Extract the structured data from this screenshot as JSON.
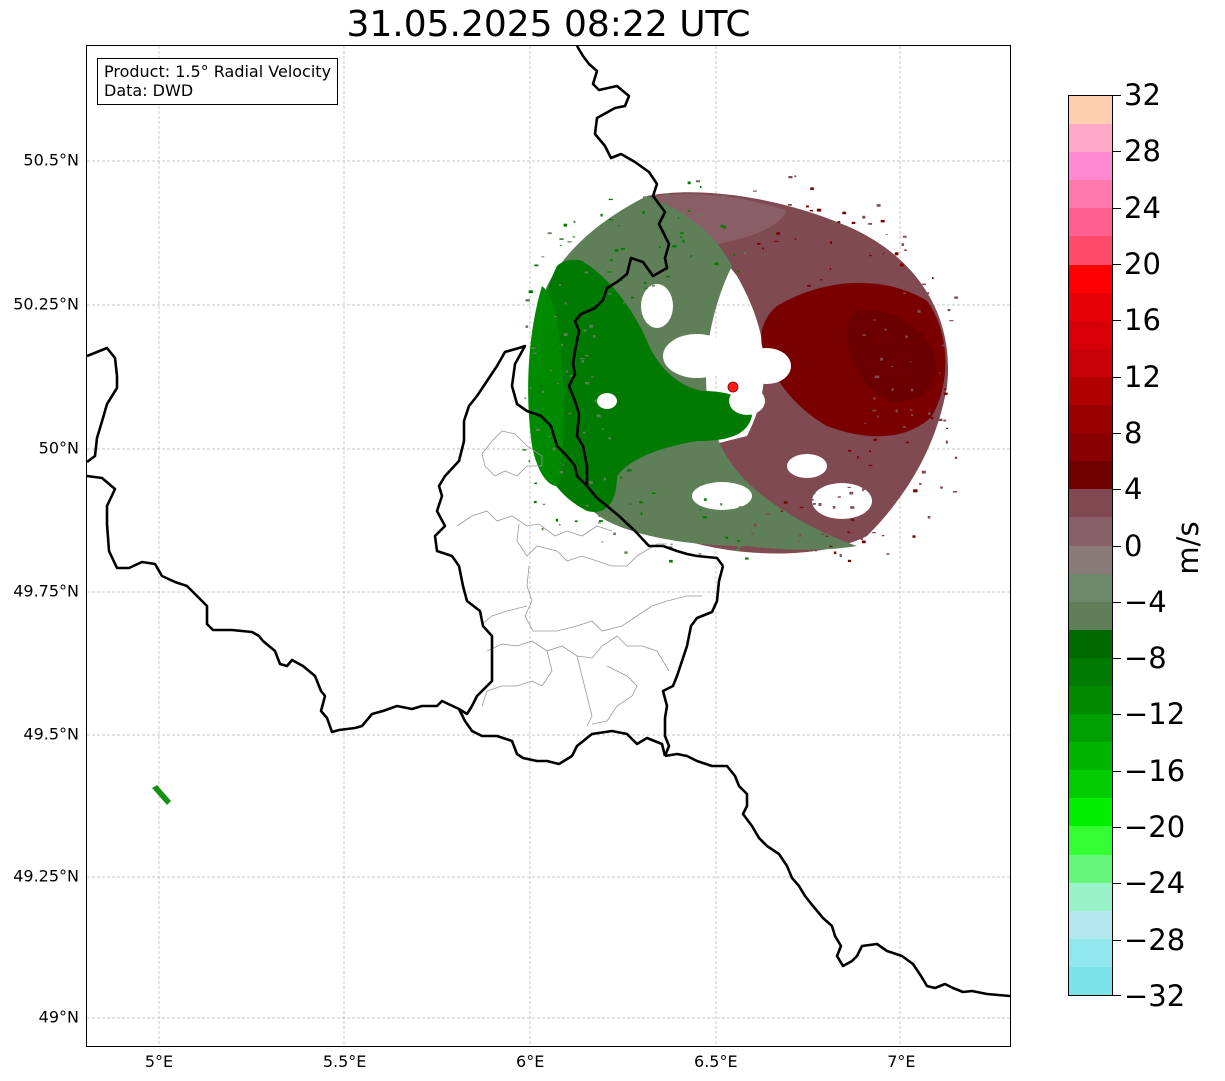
{
  "title": "31.05.2025 08:22 UTC",
  "info_box": {
    "line1": "Product: 1.5° Radial Velocity",
    "line2": "Data: DWD"
  },
  "map": {
    "extent": {
      "lon": [
        4.8,
        7.3
      ],
      "lat": [
        48.95,
        50.7
      ]
    },
    "lon_ticks": [
      {
        "value": 5.0,
        "label": "5°E"
      },
      {
        "value": 5.5,
        "label": "5.5°E"
      },
      {
        "value": 6.0,
        "label": "6°E"
      },
      {
        "value": 6.5,
        "label": "6.5°E"
      },
      {
        "value": 7.0,
        "label": "7°E"
      }
    ],
    "lat_ticks": [
      {
        "value": 50.5,
        "label": "50.5°N"
      },
      {
        "value": 50.25,
        "label": "50.25°N"
      },
      {
        "value": 50.0,
        "label": "50°N"
      },
      {
        "value": 49.75,
        "label": "49.75°N"
      },
      {
        "value": 49.5,
        "label": "49.5°N"
      },
      {
        "value": 49.25,
        "label": "49.25°N"
      },
      {
        "value": 49.0,
        "label": "49°N"
      }
    ],
    "radar_site": {
      "lon": 6.548,
      "lat": 50.11,
      "color": "#ff1a1a"
    },
    "colors": {
      "border": "#000000",
      "admin": "#999999",
      "grid": "#b5b5b5",
      "inbound_strong": "#007a00",
      "inbound_weak": "#5e7f57",
      "outbound_strong": "#7a0000",
      "outbound_weak": "#7f4a52",
      "clutter": "#129112"
    }
  },
  "colorbar": {
    "unit": "m/s",
    "vmin": -32,
    "vmax": 32,
    "tick_labels": [
      "32",
      "28",
      "24",
      "20",
      "16",
      "12",
      "8",
      "4",
      "0",
      "−4",
      "−8",
      "−12",
      "−16",
      "−20",
      "−24",
      "−28",
      "−32"
    ],
    "colors_top_to_bottom": [
      "#ffcfb0",
      "#ffa8c8",
      "#ff88d0",
      "#ff78aa",
      "#ff6090",
      "#ff4a6a",
      "#ff0000",
      "#e80008",
      "#d80008",
      "#c80008",
      "#b00000",
      "#980000",
      "#880000",
      "#700000",
      "#804850",
      "#88606a",
      "#8a7a78",
      "#6a8a6a",
      "#5e7f57",
      "#006a00",
      "#007a00",
      "#008a00",
      "#00a000",
      "#00b400",
      "#00cc00",
      "#00ee00",
      "#33ff33",
      "#66f77a",
      "#99f2c8",
      "#b3e8ee",
      "#90e8ec",
      "#7ae4e8"
    ]
  }
}
